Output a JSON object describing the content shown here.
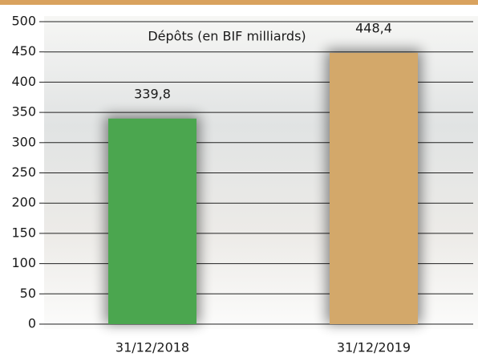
{
  "chart_data": {
    "type": "bar",
    "title": "Dépôts (en BIF milliards)",
    "categories": [
      "31/12/2018",
      "31/12/2019"
    ],
    "values": [
      339.8,
      448.4
    ],
    "value_labels": [
      "339,8",
      "448,4"
    ],
    "colors": [
      "#4ba64f",
      "#d3a86a"
    ],
    "ylim": [
      0,
      500
    ],
    "yticks": [
      0,
      50,
      100,
      150,
      200,
      250,
      300,
      350,
      400,
      450,
      500
    ],
    "grid": true
  }
}
